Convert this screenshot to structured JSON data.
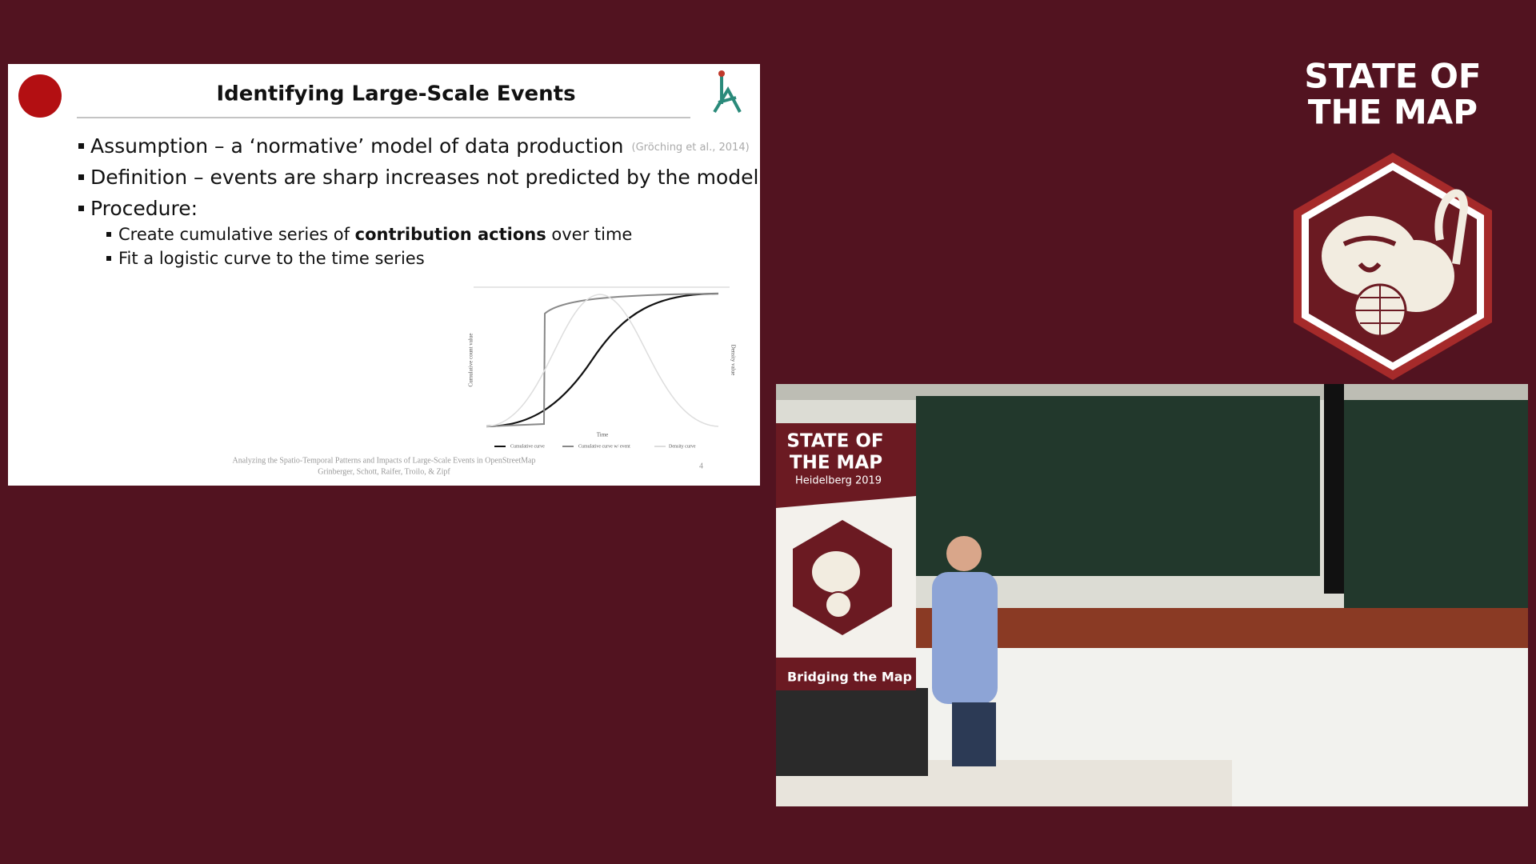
{
  "slide": {
    "title": "Identifying Large-Scale Events",
    "bullets": [
      {
        "text": "Assumption – a ‘normative’ model of data production",
        "citation": "(Gröching et al., 2014)"
      },
      {
        "text": "Definition – events are sharp increases not predicted by the model"
      },
      {
        "text": "Procedure:"
      }
    ],
    "sub_bullets": [
      {
        "before": "Create cumulative series of ",
        "bold": "contribution actions",
        "after": " over time"
      },
      {
        "before": "Fit a logistic curve to the time series"
      }
    ],
    "figure": {
      "y_label": "Cumulative count value",
      "y2_label": "Density value",
      "x_label": "Time",
      "legend": [
        "Cumulative curve",
        "Cumulative curve w/ event",
        "Density curve"
      ]
    },
    "footer": [
      "Analyzing the Spatio-Temporal Patterns and Impacts of Large-Scale Events in OpenStreetMap",
      "Grinberger, Schott, Raifer, Troilo, & Zipf"
    ],
    "page_number": "4"
  },
  "branding": {
    "lines": [
      "STATE OF",
      "THE MAP"
    ]
  },
  "video": {
    "banner": {
      "lines": [
        "STATE OF",
        "THE MAP"
      ],
      "subtitle": "Heidelberg 2019",
      "tagline": "Bridging the Map"
    }
  }
}
